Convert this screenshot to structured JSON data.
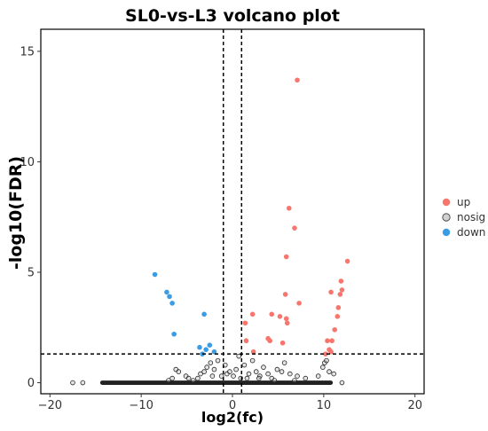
{
  "chart_data": {
    "type": "scatter",
    "title": "SL0-vs-L3 volcano plot",
    "xlabel": "log2(fc)",
    "ylabel": "-log10(FDR)",
    "xlim": [
      -21,
      21
    ],
    "ylim": [
      -0.5,
      16
    ],
    "x_ticks": [
      -20,
      -10,
      0,
      10,
      20
    ],
    "y_ticks": [
      0,
      5,
      10,
      15
    ],
    "grid": false,
    "thresholds": {
      "x": [
        -1,
        1
      ],
      "y": 1.3
    },
    "legend_position": "right",
    "series": [
      {
        "name": "up",
        "color": "#F8766D",
        "points": [
          [
            7.1,
            13.7
          ],
          [
            6.2,
            7.9
          ],
          [
            6.8,
            7.0
          ],
          [
            5.9,
            5.7
          ],
          [
            5.8,
            4.0
          ],
          [
            7.3,
            3.6
          ],
          [
            6.0,
            2.7
          ],
          [
            4.3,
            3.1
          ],
          [
            5.2,
            3.0
          ],
          [
            5.9,
            2.9
          ],
          [
            1.4,
            2.7
          ],
          [
            2.2,
            3.1
          ],
          [
            4.1,
            1.9
          ],
          [
            3.9,
            2.0
          ],
          [
            5.5,
            1.8
          ],
          [
            12.6,
            5.5
          ],
          [
            11.9,
            4.6
          ],
          [
            12.0,
            4.2
          ],
          [
            11.8,
            4.0
          ],
          [
            11.6,
            3.4
          ],
          [
            11.5,
            3.0
          ],
          [
            11.2,
            2.4
          ],
          [
            10.8,
            4.1
          ],
          [
            10.4,
            1.9
          ],
          [
            10.9,
            1.9
          ],
          [
            10.6,
            1.5
          ],
          [
            10.8,
            1.4
          ],
          [
            1.5,
            1.9
          ],
          [
            2.3,
            1.4
          ],
          [
            10.2,
            1.3
          ]
        ]
      },
      {
        "name": "nosig",
        "color": "#B3B3B3",
        "points": [
          [
            -17.5,
            0.0
          ],
          [
            -16.4,
            0.0
          ],
          [
            -6.2,
            0.6
          ],
          [
            -5.9,
            0.5
          ],
          [
            -5.1,
            0.3
          ],
          [
            -4.8,
            0.2
          ],
          [
            -3.5,
            0.4
          ],
          [
            -3.1,
            0.5
          ],
          [
            -2.8,
            0.7
          ],
          [
            -2.4,
            0.9
          ],
          [
            -2.0,
            0.6
          ],
          [
            -1.6,
            1.0
          ],
          [
            -1.2,
            0.3
          ],
          [
            -0.8,
            0.8
          ],
          [
            -0.6,
            0.4
          ],
          [
            -0.3,
            0.5
          ],
          [
            0.1,
            0.3
          ],
          [
            0.4,
            0.6
          ],
          [
            0.7,
            1.2
          ],
          [
            1.3,
            0.8
          ],
          [
            1.8,
            0.4
          ],
          [
            2.2,
            1.0
          ],
          [
            2.6,
            0.5
          ],
          [
            3.0,
            0.3
          ],
          [
            3.4,
            0.7
          ],
          [
            3.9,
            0.4
          ],
          [
            4.3,
            0.2
          ],
          [
            4.9,
            0.6
          ],
          [
            5.4,
            0.5
          ],
          [
            5.7,
            0.9
          ],
          [
            6.3,
            0.4
          ],
          [
            7.1,
            0.3
          ],
          [
            8.0,
            0.2
          ],
          [
            9.4,
            0.3
          ],
          [
            9.9,
            0.7
          ],
          [
            10.1,
            0.9
          ],
          [
            10.3,
            1.0
          ],
          [
            10.6,
            0.5
          ],
          [
            11.1,
            0.4
          ],
          [
            12.0,
            0.0
          ],
          [
            -7.0,
            0.1
          ],
          [
            -6.6,
            0.2
          ],
          [
            -4.3,
            0.1
          ],
          [
            -3.8,
            0.2
          ],
          [
            -2.2,
            0.3
          ],
          [
            0.9,
            0.2
          ],
          [
            1.6,
            0.2
          ],
          [
            2.9,
            0.2
          ],
          [
            4.6,
            0.1
          ],
          [
            6.8,
            0.1
          ]
        ]
      },
      {
        "name": "down",
        "color": "#3B9CE3",
        "points": [
          [
            -8.5,
            4.9
          ],
          [
            -7.2,
            4.1
          ],
          [
            -6.9,
            3.9
          ],
          [
            -6.6,
            3.6
          ],
          [
            -6.4,
            2.2
          ],
          [
            -3.1,
            3.1
          ],
          [
            -2.5,
            1.7
          ],
          [
            -3.6,
            1.6
          ],
          [
            -2.9,
            1.5
          ],
          [
            -3.3,
            1.3
          ],
          [
            -2.0,
            1.4
          ]
        ]
      }
    ],
    "baseline": {
      "x_from": -14.5,
      "x_to": 11.0,
      "y": 0
    }
  }
}
